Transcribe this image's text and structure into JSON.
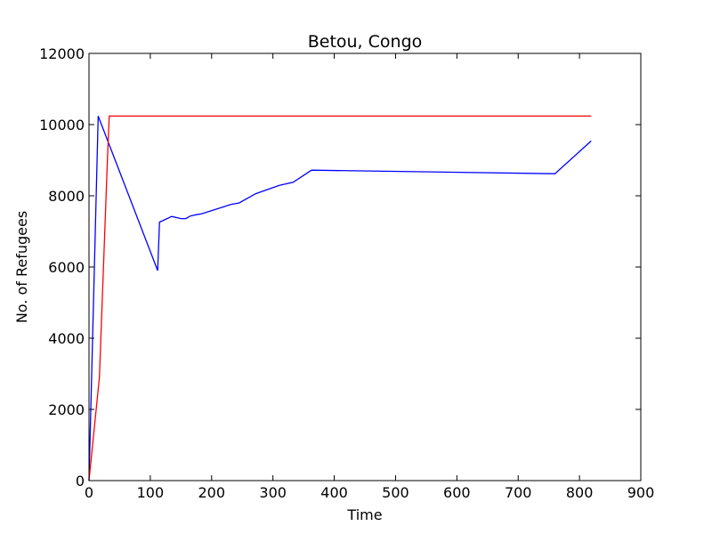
{
  "chart_data": {
    "type": "line",
    "title": "Betou, Congo",
    "xlabel": "Time",
    "ylabel": "No. of Refugees",
    "xlim": [
      0,
      900
    ],
    "ylim": [
      0,
      12000
    ],
    "xticks": [
      0,
      100,
      200,
      300,
      400,
      500,
      600,
      700,
      800,
      900
    ],
    "yticks": [
      0,
      2000,
      4000,
      6000,
      8000,
      10000,
      12000
    ],
    "grid": false,
    "legend": false,
    "series": [
      {
        "color": "#0000ff",
        "x": [
          0,
          15,
          112,
          115,
          135,
          150,
          158,
          165,
          175,
          183,
          232,
          245,
          272,
          310,
          333,
          363,
          760,
          819
        ],
        "y": [
          0,
          10240,
          5900,
          7260,
          7420,
          7360,
          7360,
          7430,
          7470,
          7490,
          7760,
          7800,
          8060,
          8290,
          8380,
          8720,
          8620,
          9540
        ]
      },
      {
        "color": "#ff0000",
        "x": [
          0,
          17,
          30,
          33,
          819
        ],
        "y": [
          0,
          2900,
          9000,
          10240,
          10240
        ]
      }
    ]
  }
}
